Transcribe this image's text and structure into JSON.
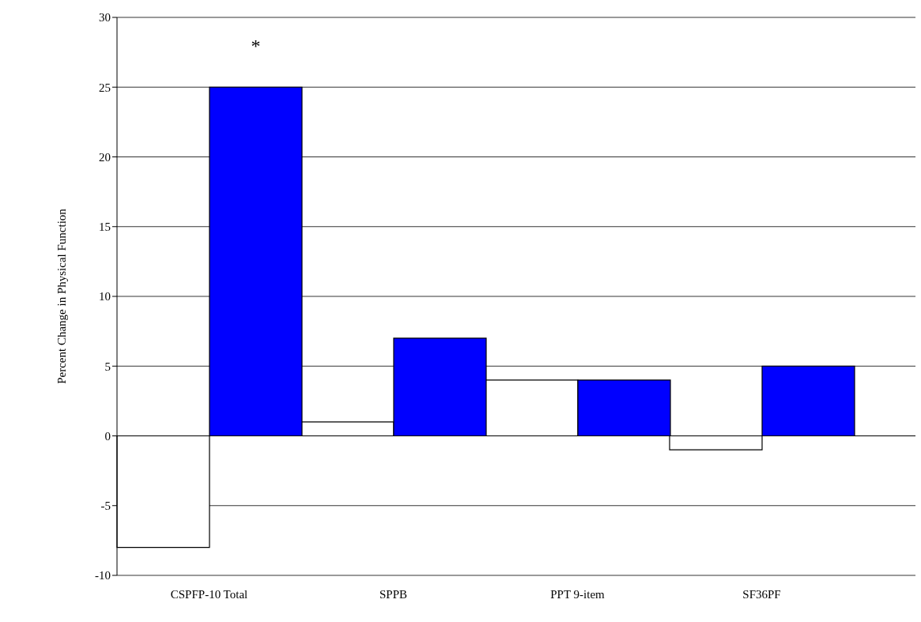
{
  "chart_data": {
    "type": "bar",
    "ylabel": "Percent Change in Physical Function",
    "categories": [
      "CSPFP-10 Total",
      "SPPB",
      "PPT 9-item",
      "SF36PF"
    ],
    "series": [
      {
        "color": "#ffffff",
        "values": [
          -8,
          1,
          4,
          -1
        ]
      },
      {
        "color": "#0000ff",
        "values": [
          25,
          7,
          4,
          5
        ]
      }
    ],
    "ylim": [
      -10,
      30
    ],
    "yticks": [
      -10,
      -5,
      0,
      5,
      10,
      15,
      20,
      25,
      30
    ],
    "grid": "y",
    "annotations": [
      "*"
    ]
  }
}
